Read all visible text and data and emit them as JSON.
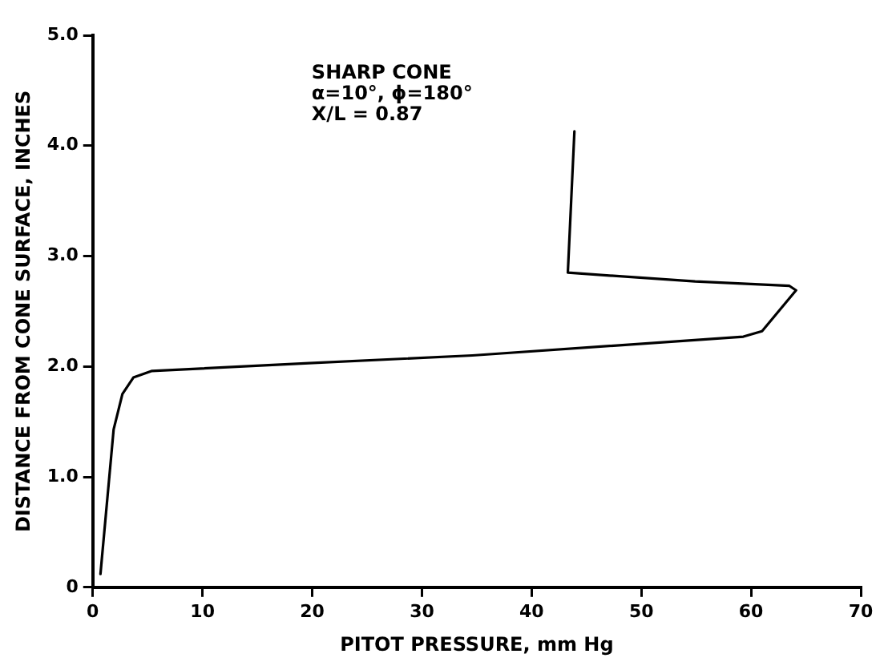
{
  "chart_data": {
    "type": "line",
    "xlabel": "PITOT PRESSURE, mm Hg",
    "ylabel": "DISTANCE FROM CONE SURFACE, INCHES",
    "annotations": [
      "SHARP CONE",
      "α=10°, ϕ=180°",
      "X/L = 0.87"
    ],
    "series": [
      {
        "color": "#000000",
        "x": [
          0.7,
          1.9,
          2.7,
          3.7,
          5.4,
          19.7,
          34.6,
          59.3,
          61,
          64.1,
          63.5,
          54.9,
          43.3,
          43.9
        ],
        "values": [
          0.12,
          1.43,
          1.75,
          1.9,
          1.96,
          2.03,
          2.1,
          2.27,
          2.32,
          2.69,
          2.73,
          2.77,
          2.85,
          4.13
        ]
      }
    ],
    "xlim": [
      0,
      70
    ],
    "xticks": [
      0,
      10,
      20,
      30,
      40,
      50,
      60,
      70
    ],
    "ylim": [
      0,
      5
    ],
    "yticks": [
      0,
      {
        "value": 1,
        "label": "1.0"
      },
      {
        "value": 2,
        "label": "2.0"
      },
      {
        "value": 3,
        "label": "3.0"
      },
      {
        "value": 4,
        "label": "4.0"
      },
      {
        "value": 5,
        "label": "5.0"
      }
    ],
    "grid": false,
    "legend": false,
    "marker": "none",
    "line_style": "solid"
  }
}
